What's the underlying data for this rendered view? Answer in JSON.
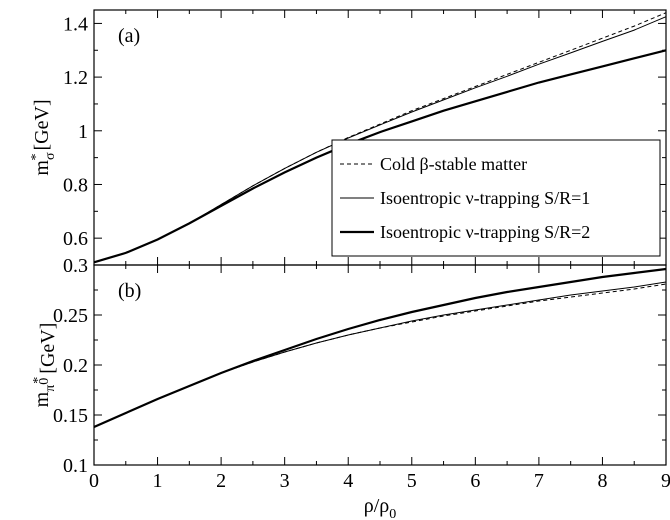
{
  "chart_data": [
    {
      "type": "line",
      "panel_label": "(a)",
      "xlim": [
        0,
        9
      ],
      "ylim": [
        0.5,
        1.45
      ],
      "x_ticks": [
        0,
        1,
        2,
        3,
        4,
        5,
        6,
        7,
        8,
        9
      ],
      "y_ticks": [
        0.6,
        0.8,
        1,
        1.2,
        1.4
      ],
      "y_tick_labels": [
        "0.6",
        "0.8",
        "1",
        "1.2",
        "1.4"
      ],
      "ylabel": {
        "base": "m",
        "sub": "σ",
        "sup": "*",
        "unit": "[GeV]"
      },
      "legend_position": "lower-right",
      "series": [
        {
          "name": "Cold β-stable matter",
          "style": "dashed",
          "x": [
            0,
            0.5,
            1,
            1.5,
            2,
            2.5,
            3,
            3.5,
            4,
            4.5,
            5,
            5.5,
            6,
            6.5,
            7,
            7.5,
            8,
            8.5,
            9
          ],
          "y": [
            0.51,
            0.545,
            0.595,
            0.655,
            0.725,
            0.795,
            0.86,
            0.92,
            0.975,
            1.025,
            1.075,
            1.12,
            1.165,
            1.21,
            1.255,
            1.3,
            1.345,
            1.39,
            1.44
          ]
        },
        {
          "name": "Isoentropic ν-trapping S/R=1",
          "style": "thin",
          "x": [
            0,
            0.5,
            1,
            1.5,
            2,
            2.5,
            3,
            3.5,
            4,
            4.5,
            5,
            5.5,
            6,
            6.5,
            7,
            7.5,
            8,
            8.5,
            9
          ],
          "y": [
            0.51,
            0.545,
            0.595,
            0.655,
            0.725,
            0.795,
            0.86,
            0.92,
            0.973,
            1.022,
            1.07,
            1.115,
            1.16,
            1.203,
            1.248,
            1.29,
            1.333,
            1.375,
            1.425
          ]
        },
        {
          "name": "Isoentropic ν-trapping S/R=2",
          "style": "thick",
          "x": [
            0,
            0.5,
            1,
            1.5,
            2,
            2.5,
            3,
            3.5,
            4,
            4.5,
            5,
            5.5,
            6,
            6.5,
            7,
            7.5,
            8,
            8.5,
            9
          ],
          "y": [
            0.51,
            0.545,
            0.595,
            0.655,
            0.72,
            0.785,
            0.845,
            0.9,
            0.95,
            0.995,
            1.035,
            1.075,
            1.11,
            1.145,
            1.18,
            1.21,
            1.24,
            1.27,
            1.3
          ]
        }
      ]
    },
    {
      "type": "line",
      "panel_label": "(b)",
      "xlim": [
        0,
        9
      ],
      "ylim": [
        0.1,
        0.3
      ],
      "x_ticks": [
        0,
        1,
        2,
        3,
        4,
        5,
        6,
        7,
        8,
        9
      ],
      "y_ticks": [
        0.1,
        0.15,
        0.2,
        0.25,
        0.3
      ],
      "y_tick_labels": [
        "0.1",
        "0.15",
        "0.2",
        "0.25",
        "0.3"
      ],
      "ylabel": {
        "base": "m",
        "sub": "π",
        "subsup": "0",
        "sup": "*",
        "unit": "[GeV]"
      },
      "xlabel": {
        "base": "ρ/ρ",
        "sub": "0"
      },
      "series": [
        {
          "name": "Cold β-stable matter",
          "style": "dashed",
          "x": [
            0,
            0.5,
            1,
            1.5,
            2,
            2.5,
            3,
            3.5,
            4,
            4.5,
            5,
            5.5,
            6,
            6.5,
            7,
            7.5,
            8,
            8.5,
            9
          ],
          "y": [
            0.138,
            0.152,
            0.166,
            0.179,
            0.192,
            0.203,
            0.213,
            0.222,
            0.23,
            0.237,
            0.243,
            0.249,
            0.254,
            0.259,
            0.264,
            0.268,
            0.272,
            0.276,
            0.281
          ]
        },
        {
          "name": "Isoentropic ν-trapping S/R=1",
          "style": "thin",
          "x": [
            0,
            0.5,
            1,
            1.5,
            2,
            2.5,
            3,
            3.5,
            4,
            4.5,
            5,
            5.5,
            6,
            6.5,
            7,
            7.5,
            8,
            8.5,
            9
          ],
          "y": [
            0.138,
            0.152,
            0.166,
            0.179,
            0.192,
            0.203,
            0.213,
            0.222,
            0.23,
            0.237,
            0.244,
            0.25,
            0.255,
            0.26,
            0.265,
            0.27,
            0.274,
            0.278,
            0.283
          ]
        },
        {
          "name": "Isoentropic ν-trapping S/R=2",
          "style": "thick",
          "x": [
            0,
            0.5,
            1,
            1.5,
            2,
            2.5,
            3,
            3.5,
            4,
            4.5,
            5,
            5.5,
            6,
            6.5,
            7,
            7.5,
            8,
            8.5,
            9
          ],
          "y": [
            0.138,
            0.152,
            0.166,
            0.179,
            0.192,
            0.204,
            0.215,
            0.226,
            0.236,
            0.245,
            0.253,
            0.26,
            0.267,
            0.273,
            0.278,
            0.283,
            0.288,
            0.292,
            0.296
          ]
        }
      ]
    }
  ]
}
